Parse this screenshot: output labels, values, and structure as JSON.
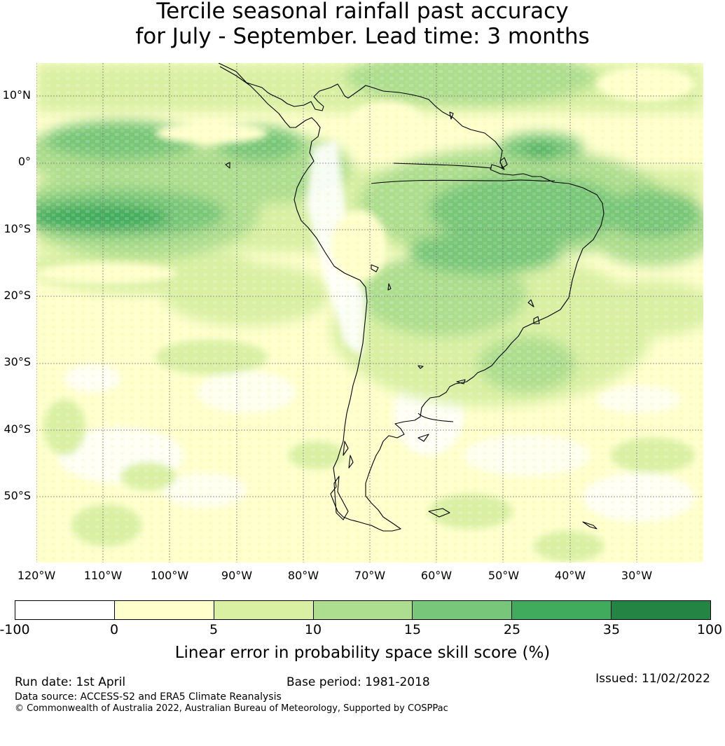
{
  "title": {
    "line1": "Tercile seasonal rainfall past accuracy",
    "line2": "for July - September. Lead time: 3 months"
  },
  "map": {
    "region": "South America",
    "graticule_latitudes": [
      "10°N",
      "0°",
      "10°S",
      "20°S",
      "30°S",
      "40°S",
      "50°S"
    ],
    "graticule_longitudes": [
      "120°W",
      "110°W",
      "100°W",
      "90°W",
      "80°W",
      "70°W",
      "60°W",
      "50°W",
      "40°W",
      "30°W"
    ],
    "coastline_color": "#000000",
    "gridline_color": "#7a7a7a"
  },
  "colorbar": {
    "ticks": [
      "-100",
      "0",
      "5",
      "10",
      "15",
      "25",
      "35",
      "100"
    ],
    "colors": [
      "#ffffff",
      "#ffffcc",
      "#d9f0a3",
      "#addd8e",
      "#78c679",
      "#41ab5d",
      "#238443"
    ],
    "label": "Linear error in probability space skill score (%)"
  },
  "footer": {
    "run_date": "Run date: 1st April",
    "base_period": "Base period: 1981-2018",
    "issued": "Issued: 11/02/2022",
    "data_source": "Data source: ACCESS-S2 and ERA5 Climate Reanalysis",
    "copyright": "© Commonwealth of Australia 2022, Australian Bureau of Meteorology, Supported by COSPPac"
  }
}
